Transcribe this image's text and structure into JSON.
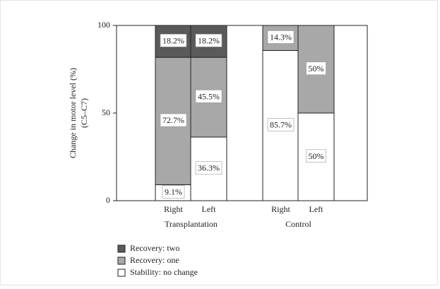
{
  "chart_data": {
    "type": "stacked-bar",
    "y_label": [
      "Change in motor level (%)",
      "(C5–C7)"
    ],
    "categories": [
      "Right",
      "Left",
      "Right",
      "Left"
    ],
    "groups": [
      "Transplantation",
      "Control"
    ],
    "ylim": [
      0,
      100
    ],
    "yticks": [
      0,
      50,
      100
    ],
    "series": [
      {
        "name": "Recovery: two",
        "color": "#5a5a5a",
        "values": [
          18.2,
          18.2,
          0,
          0
        ],
        "value_labels": [
          "18.2%",
          "18.2%",
          null,
          null
        ]
      },
      {
        "name": "Recovery: one",
        "color": "#a8a8a8",
        "values": [
          72.7,
          45.5,
          14.3,
          50
        ],
        "value_labels": [
          "72.7%",
          "45.5%",
          "14.3%",
          "50%"
        ]
      },
      {
        "name": "Stability: no change",
        "color": "#ffffff",
        "values": [
          9.1,
          36.3,
          85.7,
          50
        ],
        "value_labels": [
          "9.1%",
          "36.3%",
          "85.7%",
          "50%"
        ]
      }
    ]
  }
}
